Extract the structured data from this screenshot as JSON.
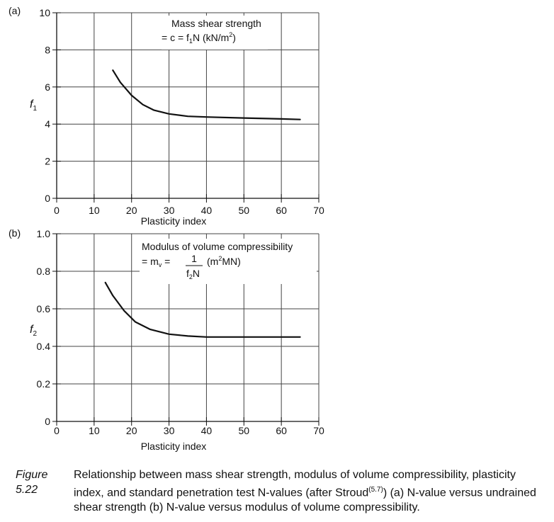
{
  "chart_data": [
    {
      "type": "line",
      "panel_label": "(a)",
      "ylabel": "f",
      "ylabel_sub": "1",
      "xlabel": "Plasticity index",
      "xlim": [
        0,
        70
      ],
      "ylim": [
        0,
        10
      ],
      "x_ticks": [
        "0",
        "10",
        "20",
        "30",
        "40",
        "50",
        "60",
        "70"
      ],
      "y_ticks": [
        "0",
        "2",
        "4",
        "6",
        "8",
        "10"
      ],
      "grid": true,
      "annotation": {
        "line1": "Mass shear strength",
        "line2_prefix": "= c = f",
        "line2_sub": "1",
        "line2_mid": "N (kN/m",
        "line2_sup": "2",
        "line2_suffix": ")"
      },
      "series": [
        {
          "x": [
            15,
            17,
            20,
            23,
            26,
            30,
            35,
            40,
            50,
            60,
            65
          ],
          "y": [
            6.9,
            6.25,
            5.55,
            5.05,
            4.75,
            4.55,
            4.42,
            4.38,
            4.33,
            4.28,
            4.25
          ]
        }
      ]
    },
    {
      "type": "line",
      "panel_label": "(b)",
      "ylabel": "f",
      "ylabel_sub": "2",
      "xlabel": "Plasticity index",
      "xlim": [
        0,
        70
      ],
      "ylim": [
        0,
        1.0
      ],
      "x_ticks": [
        "0",
        "10",
        "20",
        "30",
        "40",
        "50",
        "60",
        "70"
      ],
      "y_ticks": [
        "0",
        "0.2",
        "0.4",
        "0.6",
        "0.8",
        "1.0"
      ],
      "grid": true,
      "annotation": {
        "line1": "Modulus of volume compressibility",
        "line2_prefix": "= m",
        "line2_sub": "v",
        "line2_eq": " =",
        "frac_num": "1",
        "frac_den": "f",
        "frac_den_sub": "2",
        "frac_den_suffix": "N",
        "unit_prefix": "(m",
        "unit_sup": "2",
        "unit_suffix": "MN)"
      },
      "series": [
        {
          "x": [
            13,
            15,
            18,
            21,
            25,
            30,
            35,
            40,
            50,
            60,
            65
          ],
          "y": [
            0.74,
            0.67,
            0.59,
            0.53,
            0.49,
            0.465,
            0.455,
            0.45,
            0.45,
            0.45,
            0.45
          ]
        }
      ]
    }
  ],
  "caption": {
    "label": "Figure 5.22",
    "text_before_sup": "Relationship between mass shear strength, modulus of volume compressibility, plasticity index, and standard penetration test N-values (after Stroud",
    "sup": "(5.7)",
    "text_after_sup": ") (a) N-value versus undrained shear strength (b) N-value versus modulus of volume compressibility."
  }
}
